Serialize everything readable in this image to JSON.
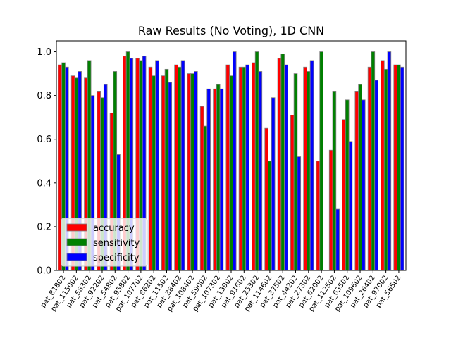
{
  "chart_data": {
    "type": "bar",
    "title": "Raw Results (No Voting), 1D CNN",
    "xlabel": "",
    "ylabel": "",
    "ylim": [
      0,
      1.05
    ],
    "yticks": [
      "0.0",
      "0.2",
      "0.4",
      "0.6",
      "0.8",
      "1.0"
    ],
    "legend_position": "lower-left",
    "categories": [
      "pat_81802",
      "pat_115002",
      "pat_58302",
      "pat_92202",
      "pat_54802",
      "pat_95802",
      "pat_107702",
      "pat_86202",
      "pat_11502",
      "pat_38402",
      "pat_108402",
      "pat_59002",
      "pat_107302",
      "pat_13902",
      "pat_91602",
      "pat_25302",
      "pat_114602",
      "pat_37502",
      "pat_44202",
      "pat_27302",
      "pat_62002",
      "pat_112502",
      "pat_63502",
      "pat_109602",
      "pat_26402",
      "pat_97002",
      "pat_56502"
    ],
    "series": [
      {
        "name": "accuracy",
        "color": "#ff0000",
        "values": [
          0.94,
          0.89,
          0.88,
          0.82,
          0.72,
          0.98,
          0.97,
          0.93,
          0.89,
          0.94,
          0.9,
          0.75,
          0.83,
          0.94,
          0.93,
          0.95,
          0.65,
          0.97,
          0.71,
          0.93,
          0.5,
          0.55,
          0.69,
          0.82,
          0.93,
          0.96,
          0.94
        ]
      },
      {
        "name": "sensitivity",
        "color": "#008000",
        "values": [
          0.95,
          0.88,
          0.96,
          0.79,
          0.91,
          1.0,
          0.96,
          0.89,
          0.92,
          0.93,
          0.9,
          0.66,
          0.85,
          0.89,
          0.93,
          1.0,
          0.5,
          0.99,
          0.9,
          0.91,
          1.0,
          0.82,
          0.78,
          0.85,
          1.0,
          0.92,
          0.94
        ]
      },
      {
        "name": "specificity",
        "color": "#0000ff",
        "values": [
          0.93,
          0.91,
          0.8,
          0.85,
          0.53,
          0.97,
          0.98,
          0.96,
          0.86,
          0.96,
          0.91,
          0.83,
          0.83,
          1.0,
          0.94,
          0.91,
          0.79,
          0.94,
          0.52,
          0.96,
          null,
          0.28,
          0.59,
          0.78,
          0.87,
          1.0,
          0.93
        ]
      }
    ]
  }
}
